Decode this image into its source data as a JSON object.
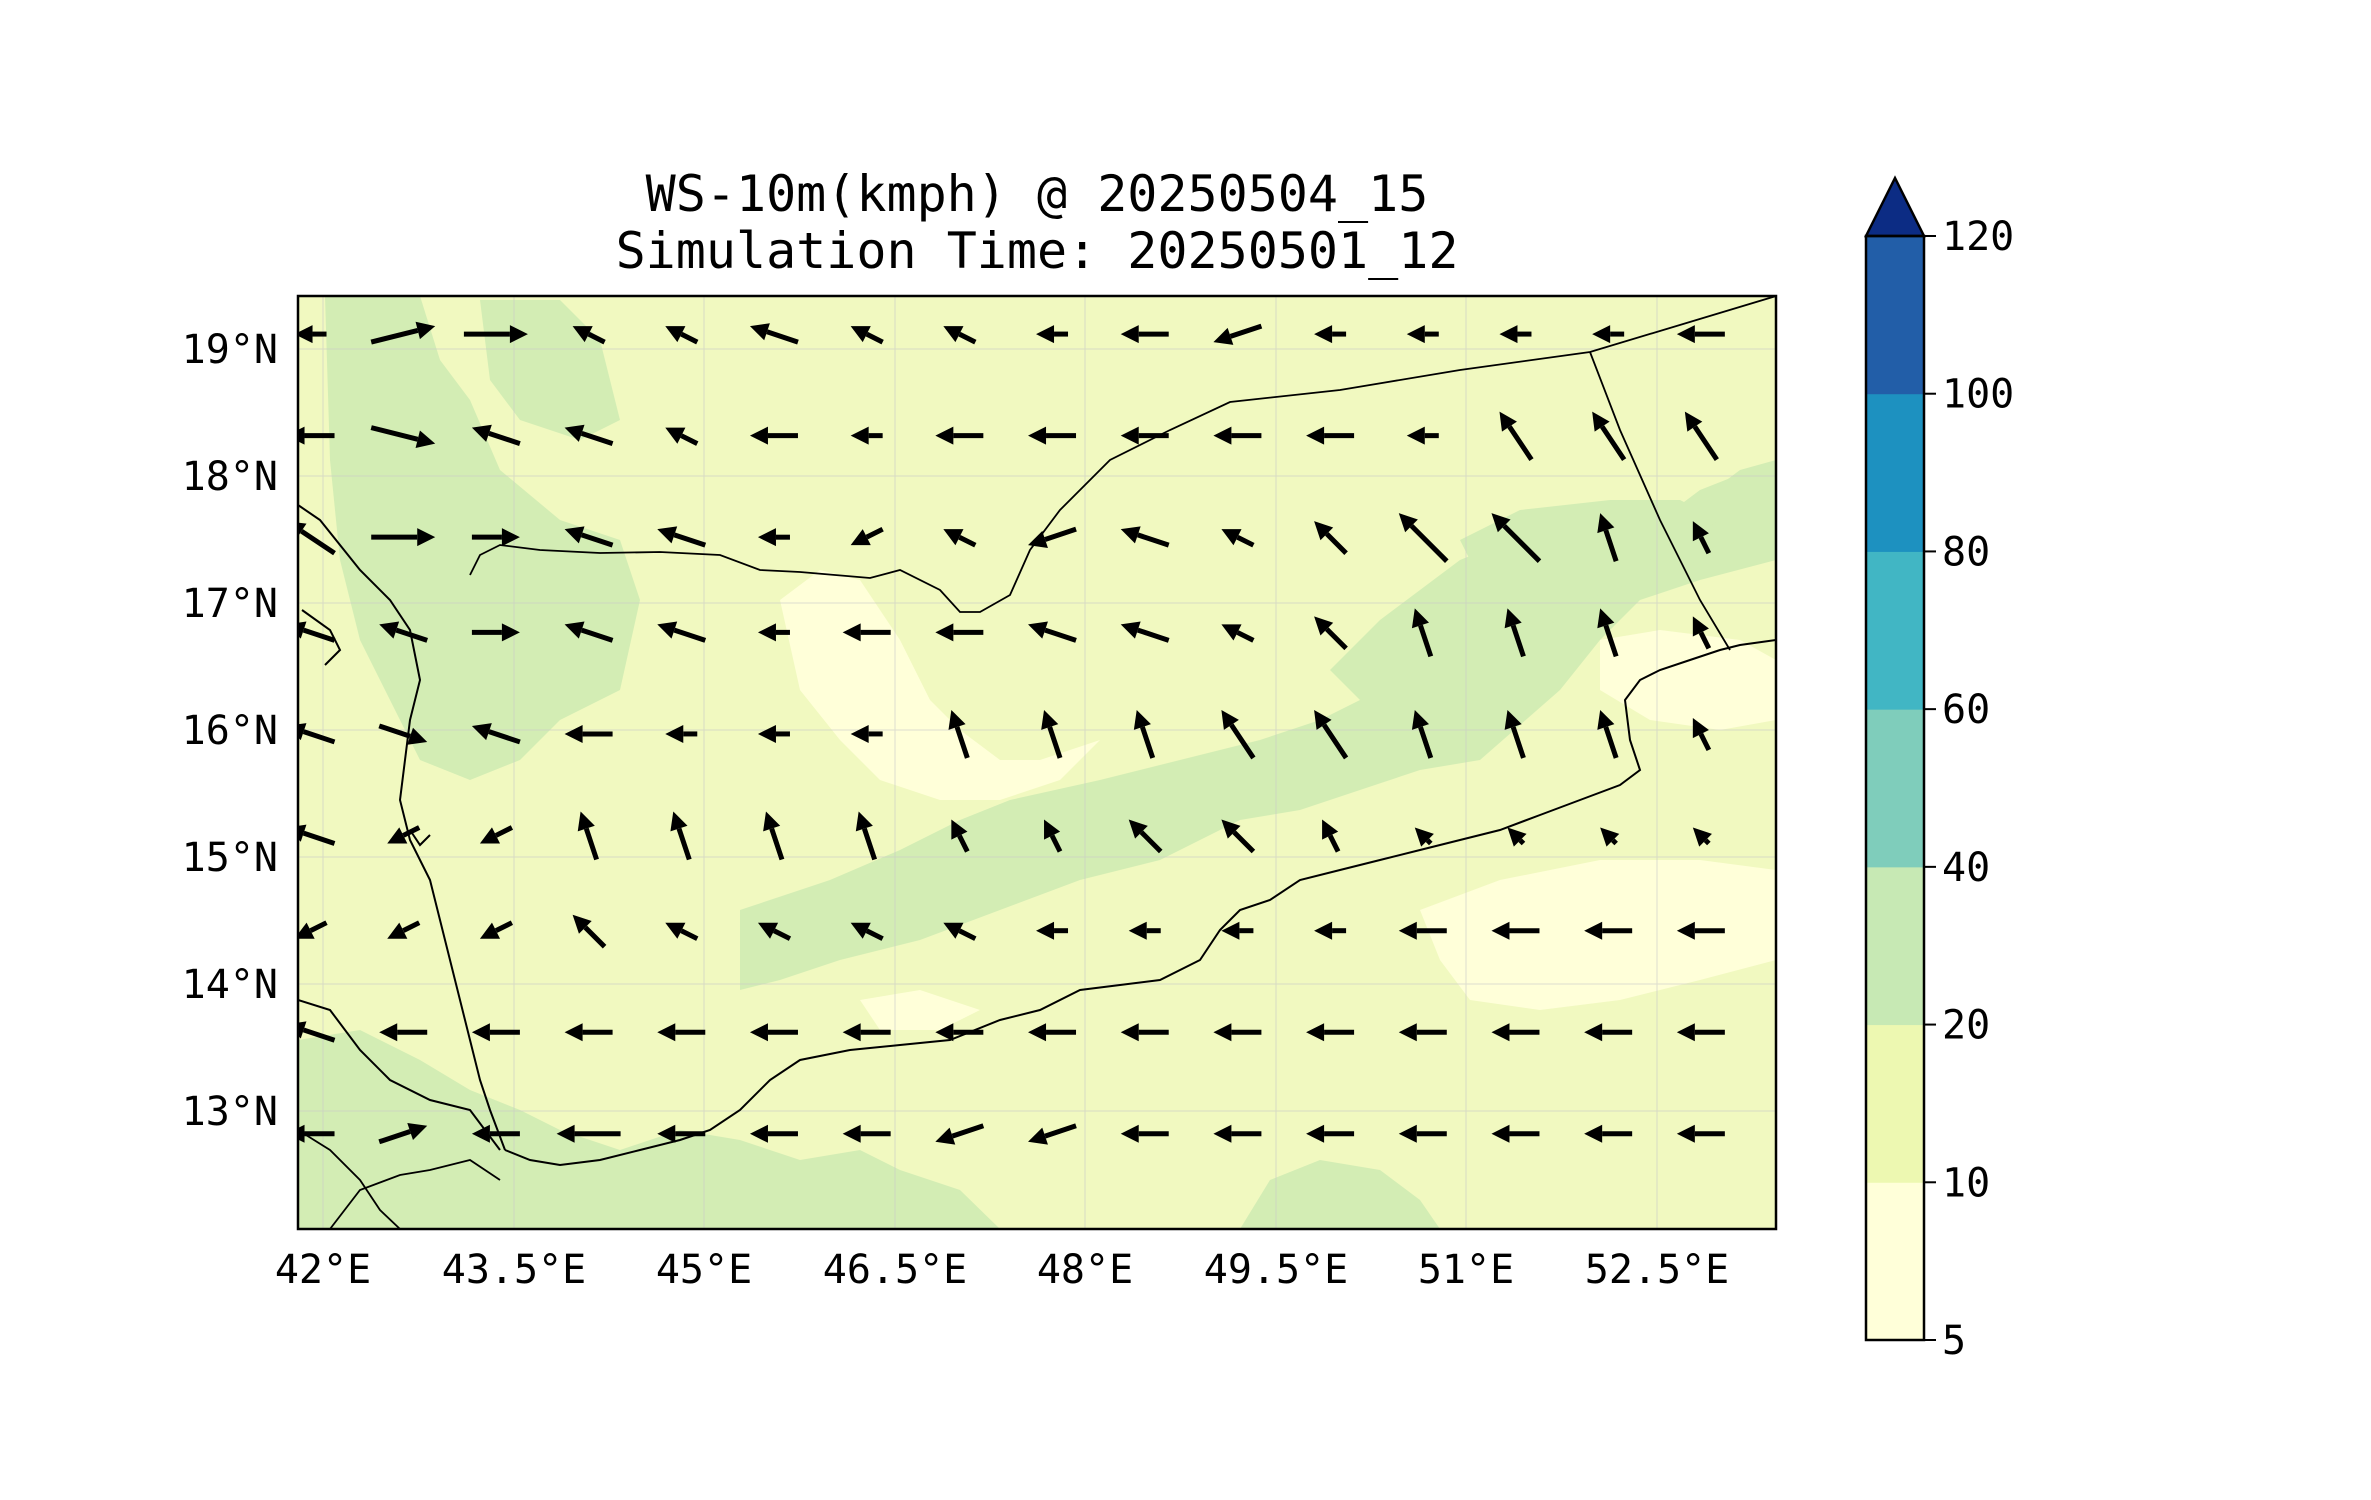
{
  "title": {
    "line1": "WS-10m(kmph) @ 20250504_15",
    "line2": "Simulation Time: 20250501_12"
  },
  "map": {
    "lon_range": [
      41.9,
      53.7
    ],
    "lat_range": [
      12.1,
      19.45
    ],
    "xticks": [
      "42°E",
      "43.5°E",
      "45°E",
      "46.5°E",
      "48°E",
      "49.5°E",
      "51°E",
      "52.5°E"
    ],
    "yticks": [
      "19°N",
      "18°N",
      "17°N",
      "16°N",
      "15°N",
      "14°N",
      "13°N"
    ],
    "grid": true,
    "coastlines": true,
    "borders": true
  },
  "colorbar": {
    "levels": [
      "5",
      "10",
      "20",
      "40",
      "60",
      "80",
      "100",
      "120"
    ],
    "colors": [
      "#ffffd9",
      "#edf8b1",
      "#c7e9b4",
      "#7fcdbb",
      "#41b6c4",
      "#1d91c0",
      "#225ea8"
    ],
    "extend_color": "#0c2c84",
    "extend": "max"
  },
  "chart_data": {
    "type": "map",
    "variable": "WS-10m(kmph)",
    "field_colors": {
      "5-10": "#ffffd9",
      "10-20": "#f1f9c0",
      "20-40": "#d3edb4"
    },
    "grid_lon": [
      42.0,
      42.4,
      42.8,
      43.2,
      43.6,
      44.0,
      44.4,
      44.8,
      45.2,
      45.6,
      46.0,
      46.4,
      46.8,
      47.2,
      47.6,
      48.0,
      48.4,
      48.8,
      49.2,
      49.6,
      50.0,
      50.4,
      50.8,
      51.2,
      51.6,
      52.0,
      52.4,
      52.8,
      53.2,
      53.6
    ],
    "grid_lat": [
      19.2,
      18.4,
      17.6,
      16.8,
      16.0,
      15.2,
      14.4,
      13.6,
      12.8,
      12.2
    ],
    "wind_rows": [
      {
        "lat": 19.15,
        "u": [
          -2,
          4,
          4,
          -2,
          -2,
          -3,
          -2,
          -2,
          -2,
          -3,
          -3,
          -2,
          -2,
          -2,
          -2,
          -3
        ],
        "v": [
          0,
          1,
          0,
          1,
          1,
          1,
          1,
          1,
          0,
          0,
          -1,
          0,
          0,
          0,
          0,
          0
        ]
      },
      {
        "lat": 18.35,
        "u": [
          -3,
          4,
          -3,
          -3,
          -2,
          -3,
          -2,
          -3,
          -3,
          -3,
          -3,
          -3,
          -2,
          -2,
          -2,
          -2
        ],
        "v": [
          0,
          -1,
          1,
          1,
          1,
          0,
          0,
          0,
          0,
          0,
          0,
          0,
          0,
          3,
          3,
          3
        ]
      },
      {
        "lat": 17.55,
        "u": [
          -3,
          4,
          3,
          -3,
          -3,
          -2,
          -2,
          -2,
          -3,
          -3,
          -2,
          -2,
          -3,
          -3,
          -1,
          -1
        ],
        "v": [
          2,
          0,
          0,
          1,
          1,
          0,
          -1,
          1,
          -1,
          1,
          1,
          2,
          3,
          3,
          3,
          2
        ]
      },
      {
        "lat": 16.8,
        "u": [
          -3,
          -3,
          3,
          -3,
          -3,
          -2,
          -3,
          -3,
          -3,
          -3,
          -2,
          -2,
          -1,
          -1,
          -1,
          -1
        ],
        "v": [
          1,
          1,
          0,
          1,
          1,
          0,
          0,
          0,
          1,
          1,
          1,
          2,
          3,
          3,
          3,
          2
        ]
      },
      {
        "lat": 16.0,
        "u": [
          -3,
          3,
          -3,
          -3,
          -2,
          -2,
          -2,
          -1,
          -1,
          -1,
          -2,
          -2,
          -1,
          -1,
          -1,
          -1
        ],
        "v": [
          1,
          -1,
          1,
          0,
          0,
          0,
          0,
          3,
          3,
          3,
          3,
          3,
          3,
          3,
          3,
          2
        ]
      },
      {
        "lat": 15.2,
        "u": [
          -3,
          -2,
          -2,
          -1,
          -1,
          -1,
          -1,
          -1,
          -1,
          -2,
          -2,
          -1,
          -1,
          -1,
          -1,
          -1
        ],
        "v": [
          1,
          -1,
          -1,
          3,
          3,
          3,
          3,
          2,
          2,
          2,
          2,
          2,
          1,
          1,
          1,
          1
        ]
      },
      {
        "lat": 14.45,
        "u": [
          -2,
          -2,
          -2,
          -2,
          -2,
          -2,
          -2,
          -2,
          -2,
          -2,
          -2,
          -2,
          -3,
          -3,
          -3,
          -3
        ],
        "v": [
          -1,
          -1,
          -1,
          2,
          1,
          1,
          1,
          1,
          0,
          0,
          0,
          0,
          0,
          0,
          0,
          0
        ]
      },
      {
        "lat": 13.65,
        "u": [
          -3,
          -3,
          -3,
          -3,
          -3,
          -3,
          -3,
          -3,
          -3,
          -3,
          -3,
          -3,
          -3,
          -3,
          -3,
          -3
        ],
        "v": [
          1,
          0,
          0,
          0,
          0,
          0,
          0,
          0,
          0,
          0,
          0,
          0,
          0,
          0,
          0,
          0
        ]
      },
      {
        "lat": 12.85,
        "u": [
          -3,
          3,
          -3,
          -4,
          -3,
          -3,
          -3,
          -3,
          -3,
          -3,
          -3,
          -3,
          -3,
          -3,
          -3,
          -3
        ],
        "v": [
          0,
          1,
          0,
          0,
          0,
          0,
          0,
          -1,
          -1,
          0,
          0,
          0,
          0,
          0,
          0,
          0
        ]
      }
    ]
  }
}
